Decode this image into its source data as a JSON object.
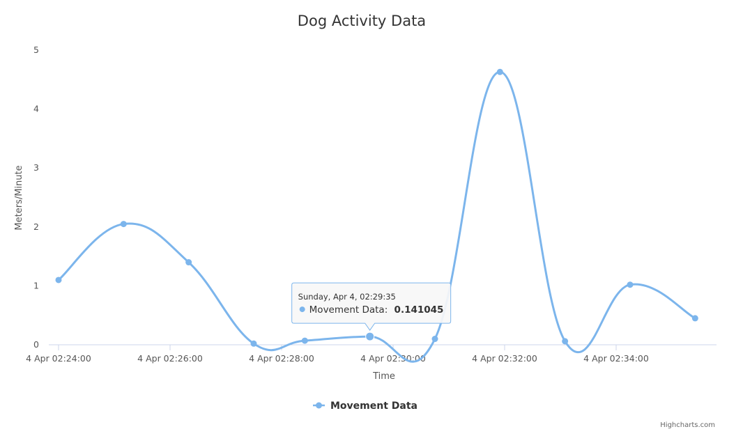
{
  "chart_data": {
    "type": "line",
    "title": "Dog Activity Data",
    "xlabel": "Time",
    "ylabel": "Meters/Minute",
    "ylim": [
      0,
      5
    ],
    "y_ticks": [
      "0",
      "1",
      "2",
      "3",
      "4",
      "5"
    ],
    "x_ticks": [
      "4 Apr 02:24:00",
      "4 Apr 02:26:00",
      "4 Apr 02:28:00",
      "4 Apr 02:30:00",
      "4 Apr 02:32:00",
      "4 Apr 02:34:00"
    ],
    "series": [
      {
        "name": "Movement Data",
        "color": "#7cb5ec",
        "points": [
          {
            "t": "02:24:00",
            "y": 1.1
          },
          {
            "t": "02:25:10",
            "y": 2.05
          },
          {
            "t": "02:26:20",
            "y": 1.4
          },
          {
            "t": "02:27:30",
            "y": 0.02
          },
          {
            "t": "02:28:25",
            "y": 0.07
          },
          {
            "t": "02:29:35",
            "y": 0.141045
          },
          {
            "t": "02:30:45",
            "y": 0.1
          },
          {
            "t": "02:31:55",
            "y": 4.63
          },
          {
            "t": "02:33:05",
            "y": 0.06
          },
          {
            "t": "02:34:15",
            "y": 1.02
          },
          {
            "t": "02:35:25",
            "y": 0.45
          }
        ]
      }
    ],
    "tooltip": {
      "header": "Sunday, Apr 4, 02:29:35",
      "series_label": "Movement Data:",
      "value": "0.141045",
      "point_index": 5
    },
    "legend": "bottom-center"
  },
  "credits": "Highcharts.com"
}
